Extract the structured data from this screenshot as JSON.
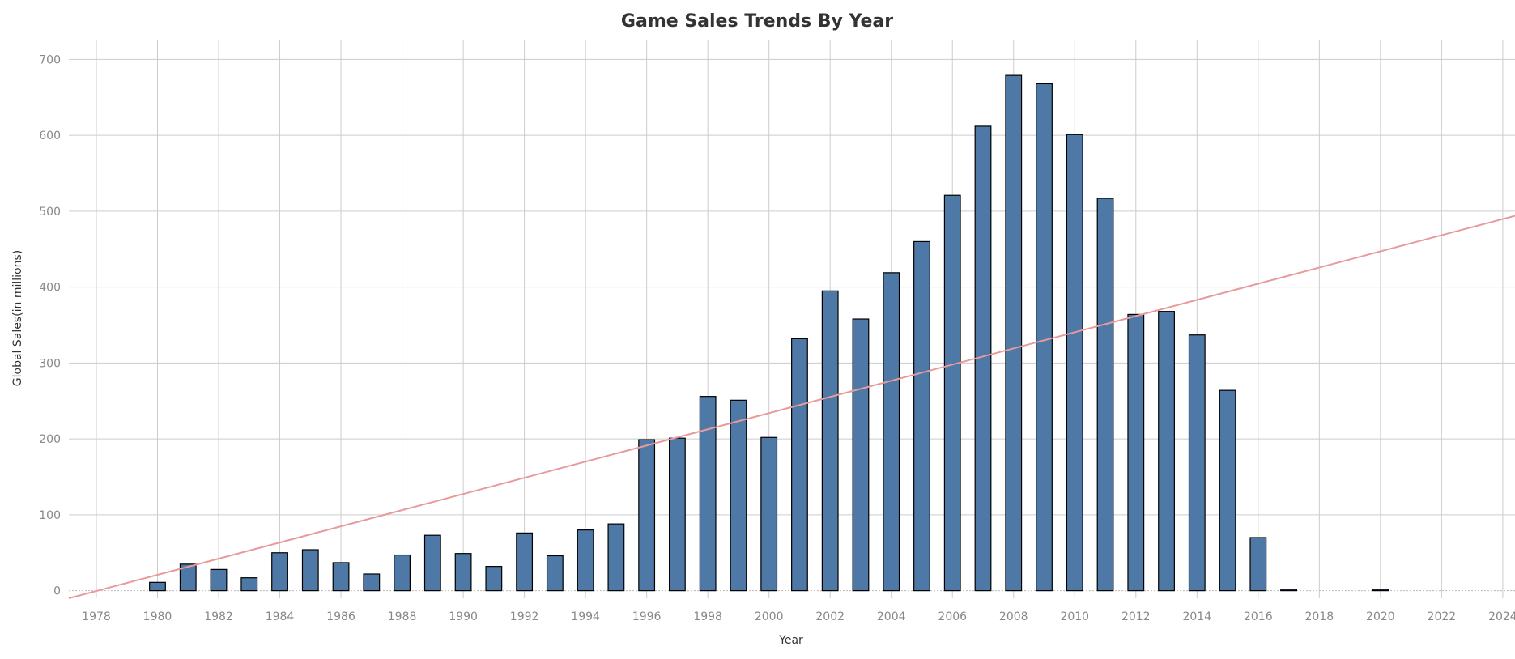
{
  "chart_data": {
    "type": "bar",
    "title": "Game Sales Trends By Year",
    "xlabel": "Year",
    "ylabel": "Global Sales(in millions)",
    "xlim": [
      1977.1,
      2024.4
    ],
    "ylim": [
      -10,
      725
    ],
    "x_ticks": [
      1978,
      1980,
      1982,
      1984,
      1986,
      1988,
      1990,
      1992,
      1994,
      1996,
      1998,
      2000,
      2002,
      2004,
      2006,
      2008,
      2010,
      2012,
      2014,
      2016,
      2018,
      2020,
      2022,
      2024
    ],
    "y_ticks": [
      0,
      100,
      200,
      300,
      400,
      500,
      600,
      700
    ],
    "grid": true,
    "colors": {
      "bar": "#4e79a7",
      "bar_outline": "#000000",
      "trend": "#e89a9a",
      "grid": "#cccccc",
      "zero_line": "#bbbbbb"
    },
    "series": [
      {
        "x": [
          1980,
          1981,
          1982,
          1983,
          1984,
          1985,
          1986,
          1987,
          1988,
          1989,
          1990,
          1991,
          1992,
          1993,
          1994,
          1995,
          1996,
          1997,
          1998,
          1999,
          2000,
          2001,
          2002,
          2003,
          2004,
          2005,
          2006,
          2007,
          2008,
          2009,
          2010,
          2011,
          2012,
          2013,
          2014,
          2015,
          2016,
          2017,
          2020
        ],
        "values": [
          11,
          35,
          28,
          17,
          50,
          54,
          37,
          22,
          47,
          73,
          49,
          32,
          76,
          46,
          80,
          88,
          199,
          201,
          256,
          251,
          202,
          332,
          395,
          358,
          419,
          460,
          521,
          612,
          679,
          668,
          601,
          517,
          364,
          368,
          337,
          264,
          70,
          0.1,
          0.1
        ]
      }
    ],
    "trend_line": {
      "x": [
        1977.1,
        2024.4
      ],
      "y": [
        -10,
        494
      ]
    }
  }
}
